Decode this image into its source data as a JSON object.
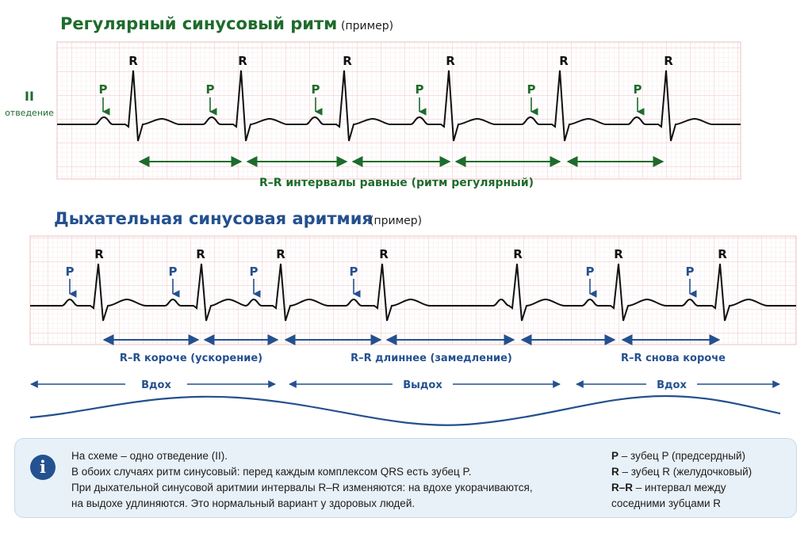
{
  "top": {
    "title": "Регулярный синусовый ритм",
    "title_note": "(пример)",
    "lead_number": "II",
    "lead_word": "отведение",
    "wave_p": "P",
    "wave_r": "R",
    "intervals_caption": "R–R интервалы равные (ритм регулярный)",
    "beat_r_positions_ms": [
      0,
      535,
      1060,
      1590,
      2155,
      2690
    ]
  },
  "bottom": {
    "title": "Дыхательная синусовая аритмия",
    "title_note": "(пример)",
    "wave_p": "P",
    "wave_r": "R",
    "caption_faster": "R–R короче (ускорение)",
    "caption_slower": "R–R длиннее (замедление)",
    "caption_faster_again": "R–R снова короче",
    "phase_inhale": "Вдох",
    "phase_exhale": "Выдох",
    "phase_inhale_again": "Вдох",
    "beat_r_positions_ms": [
      0,
      515,
      910,
      1430,
      2115,
      2610,
      3130
    ]
  },
  "info": {
    "icon": "info-icon",
    "icon_glyph": "i",
    "line1": "На схеме – одно отведение (II).",
    "line2": "В обоих случаях ритм синусовый: перед каждым комплексом QRS есть зубец P.",
    "line3": "При дыхательной синусовой аритмии интервалы R–R изменяются: на вдохе укорачиваются,",
    "line4": "на выдохе удлиняются. Это нормальный вариант у здоровых людей."
  },
  "legend": {
    "p_key": "P",
    "p_text": " – зубец P (предсердный)",
    "r_key": "R",
    "r_text": " – зубец R (желудочковый)",
    "rr_key": "R–R",
    "rr_text": " – интервал между",
    "rr_text2": "соседними зубцами R"
  },
  "colors": {
    "green": "#1e6b2c",
    "blue": "#24508f",
    "grid_minor": "#f7d8d8",
    "grid_major": "#efbcbc",
    "ecg_line": "#111111"
  }
}
